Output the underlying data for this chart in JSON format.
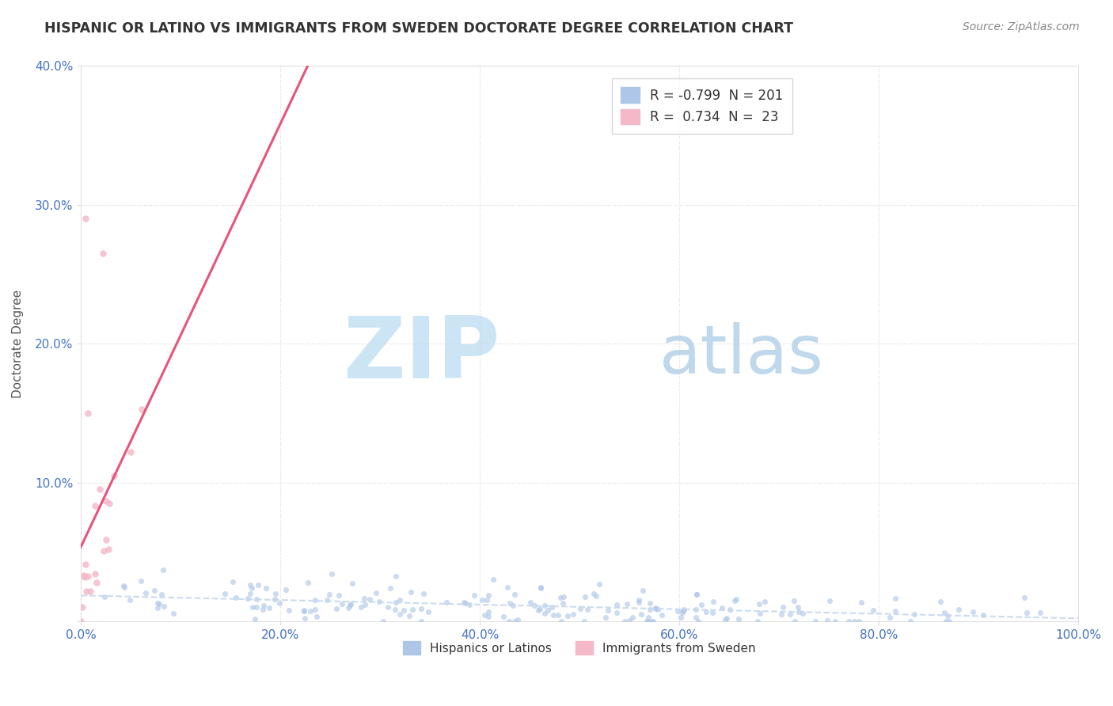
{
  "title": "HISPANIC OR LATINO VS IMMIGRANTS FROM SWEDEN DOCTORATE DEGREE CORRELATION CHART",
  "source": "Source: ZipAtlas.com",
  "ylabel": "Doctorate Degree",
  "xlabel_ticks": [
    "0.0%",
    "20.0%",
    "40.0%",
    "60.0%",
    "80.0%",
    "100.0%"
  ],
  "ylabel_ticks": [
    "",
    "10.0%",
    "20.0%",
    "30.0%",
    "40.0%"
  ],
  "legend_labels_bottom": [
    "Hispanics or Latinos",
    "Immigrants from Sweden"
  ],
  "blue_scatter_color": "#aec6e8",
  "pink_scatter_color": "#f4b8c8",
  "blue_line_color": "#c5d8ee",
  "pink_line_color": "#e8537a",
  "watermark_zip_color": "#c8e4f5",
  "watermark_atlas_color": "#c8dff0",
  "background_color": "#ffffff",
  "grid_color": "#cccccc",
  "title_color": "#333333",
  "axis_label_color": "#555555",
  "tick_label_color": "#4472c4",
  "source_color": "#888888",
  "xlim": [
    0,
    1.0
  ],
  "ylim": [
    0,
    0.4
  ],
  "blue_R": -0.799,
  "blue_N": 201,
  "pink_R": 0.734,
  "pink_N": 23
}
